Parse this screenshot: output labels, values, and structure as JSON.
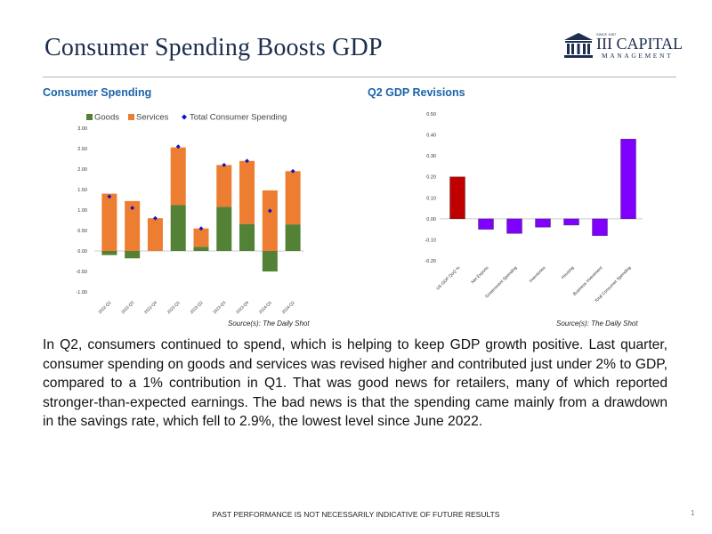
{
  "page": {
    "title": "Consumer Spending Boosts GDP",
    "footer": "PAST PERFORMANCE IS NOT NECESSARILY INDICATIVE OF FUTURE RESULTS",
    "page_number": "1",
    "body_text": "In Q2, consumers continued to spend, which is helping to keep GDP growth positive. Last quarter, consumer spending on goods and services was revised higher and contributed just under 2% to GDP, compared to a 1% contribution in Q1. That was good news for retailers, many of which reported stronger-than-expected earnings. The bad news is that the spending came mainly from a drawdown in the savings rate, which fell to 2.9%, the lowest level since June 2022."
  },
  "logo": {
    "since": "SINCE 1987",
    "name": "III CAPITAL",
    "subtitle": "MANAGEMENT"
  },
  "colors": {
    "title": "#1c2d4e",
    "subheading": "#1c63a8",
    "goods": "#538135",
    "services": "#ed7d31",
    "total": "#1010c8",
    "gdp_bar": "#c00000",
    "revision_bar": "#7f00ff"
  },
  "left_panel": {
    "heading": "Consumer Spending",
    "source": "Source(s): The Daily Shot"
  },
  "right_panel": {
    "heading": "Q2 GDP Revisions",
    "source": "Source(s): The Daily Shot"
  },
  "chart_data": [
    {
      "type": "bar",
      "stacked": true,
      "categories": [
        "2022-Q2",
        "2022-Q3",
        "2022-Q4",
        "2023-Q1",
        "2023-Q2",
        "2023-Q3",
        "2023-Q4",
        "2024-Q1",
        "2024-Q2"
      ],
      "series": [
        {
          "name": "Goods",
          "values": [
            -0.1,
            -0.18,
            0.0,
            1.12,
            0.1,
            1.08,
            0.66,
            -0.5,
            0.65
          ]
        },
        {
          "name": "Services",
          "values": [
            1.4,
            1.22,
            0.8,
            1.41,
            0.45,
            1.02,
            1.54,
            1.48,
            1.3
          ]
        },
        {
          "name": "Total Consumer Spending",
          "type": "scatter",
          "values": [
            1.33,
            1.05,
            0.8,
            2.55,
            0.55,
            2.1,
            2.2,
            0.98,
            1.95
          ]
        }
      ],
      "yticks": [
        "3.00",
        "2.50",
        "2.00",
        "1.50",
        "1.00",
        "0.50",
        "0.00",
        "-0.50",
        "-1.00"
      ],
      "ylim": [
        -1.0,
        3.0
      ],
      "legend": "top",
      "grid": false
    },
    {
      "type": "bar",
      "categories": [
        "US GDP QoQ %",
        "Net Exports",
        "Government Spending",
        "Inventories",
        "Housing",
        "Business Investment",
        "Total Consumer Spending"
      ],
      "values": [
        0.2,
        -0.05,
        -0.07,
        -0.04,
        -0.03,
        -0.08,
        0.38
      ],
      "yticks": [
        "0.50",
        "0.40",
        "0.30",
        "0.20",
        "0.10",
        "0.00",
        "-0.10",
        "-0.20"
      ],
      "ylim": [
        -0.2,
        0.5
      ],
      "grid": false
    }
  ]
}
